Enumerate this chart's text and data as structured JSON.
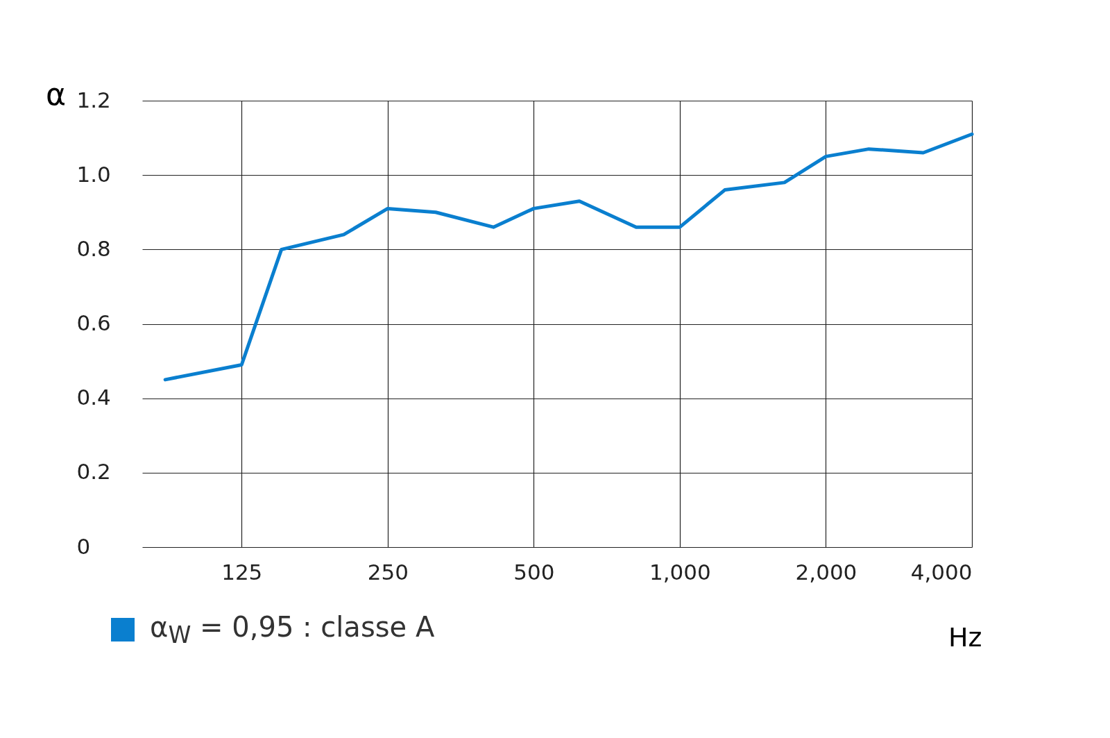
{
  "chart_data": {
    "type": "line",
    "xlabel": "Hz",
    "ylabel": "α",
    "log": "x",
    "x": [
      87,
      125,
      151,
      203,
      250,
      314,
      413,
      500,
      621,
      813,
      1000,
      1238,
      1643,
      2000,
      2452,
      3175,
      4000
    ],
    "series": [
      {
        "name": "α$_{W}$ = 0,95 : classe A",
        "color": "#0a7fcf",
        "values": [
          0.45,
          0.49,
          0.8,
          0.84,
          0.91,
          0.9,
          0.86,
          0.91,
          0.93,
          0.86,
          0.86,
          0.96,
          0.98,
          1.05,
          1.07,
          1.06,
          1.11
        ]
      }
    ],
    "xlim": [
      78,
      4000
    ],
    "xticks": [
      125,
      250,
      500,
      {
        "value": 1000,
        "label": "1,000"
      },
      {
        "value": 2000,
        "label": "2,000"
      },
      {
        "value": 4000,
        "label": "4,000"
      }
    ],
    "ylim": [
      0,
      1.2
    ],
    "yticks": [
      0,
      0.2,
      0.4,
      0.6,
      0.8,
      {
        "value": 1,
        "label": "1.0"
      },
      1.2
    ],
    "grid": true,
    "legend": "bottom left",
    "marker": "none",
    "line_style": "solid"
  }
}
